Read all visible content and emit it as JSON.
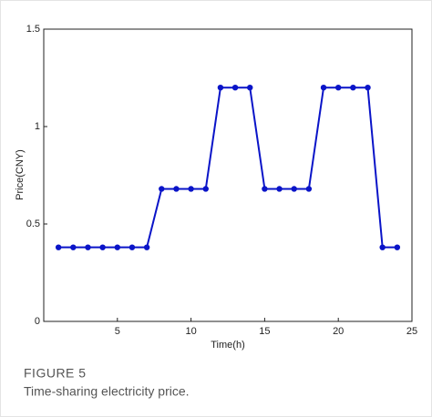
{
  "chart_data": {
    "type": "line",
    "x_label": "Time(h)",
    "y_label": "Price(CNY)",
    "x": [
      1,
      2,
      3,
      4,
      5,
      6,
      7,
      8,
      9,
      10,
      11,
      12,
      13,
      14,
      15,
      16,
      17,
      18,
      19,
      20,
      21,
      22,
      23,
      24
    ],
    "values": [
      0.38,
      0.38,
      0.38,
      0.38,
      0.38,
      0.38,
      0.38,
      0.68,
      0.68,
      0.68,
      0.68,
      1.2,
      1.2,
      1.2,
      0.68,
      0.68,
      0.68,
      0.68,
      1.2,
      1.2,
      1.2,
      1.2,
      0.38,
      0.38
    ],
    "color": "#0a14c8",
    "xlim": [
      0,
      25
    ],
    "xticks": [
      5,
      10,
      15,
      20,
      25
    ],
    "ylim": [
      0,
      1.5
    ],
    "yticks": [
      0,
      0.5,
      1,
      1.5
    ],
    "grid": false
  },
  "figure": {
    "label": "FIGURE 5",
    "caption": "Time-sharing electricity price."
  }
}
